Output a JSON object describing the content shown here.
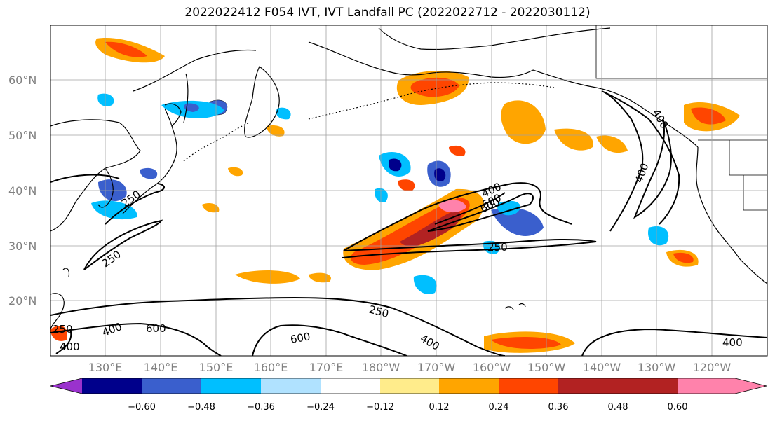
{
  "title": "2022022412 F054 IVT, IVT Landfall PC (2022022712 - 2022030112)",
  "lat_labels": [
    "60°N",
    "50°N",
    "40°N",
    "30°N",
    "20°N"
  ],
  "lon_labels": [
    "130°E",
    "140°E",
    "150°E",
    "160°E",
    "170°E",
    "180°W",
    "170°W",
    "160°W",
    "150°W",
    "140°W",
    "130°W",
    "120°W"
  ],
  "contour_labels": [
    "250",
    "400",
    "600",
    "250",
    "400",
    "600",
    "250",
    "250",
    "400",
    "600",
    "400",
    "400",
    "600",
    "400",
    "400",
    "250"
  ],
  "colorbar": {
    "ticks": [
      "−0.60",
      "−0.48",
      "−0.36",
      "−0.24",
      "−0.12",
      "0.12",
      "0.24",
      "0.36",
      "0.48",
      "0.60"
    ],
    "colors": [
      "#9a32cd",
      "#00008b",
      "#3a5fcd",
      "#00bfff",
      "#b0e2ff",
      "#ffffff",
      "#ffec8b",
      "#ffa500",
      "#ff4500",
      "#b22222",
      "#ff82ab"
    ]
  }
}
